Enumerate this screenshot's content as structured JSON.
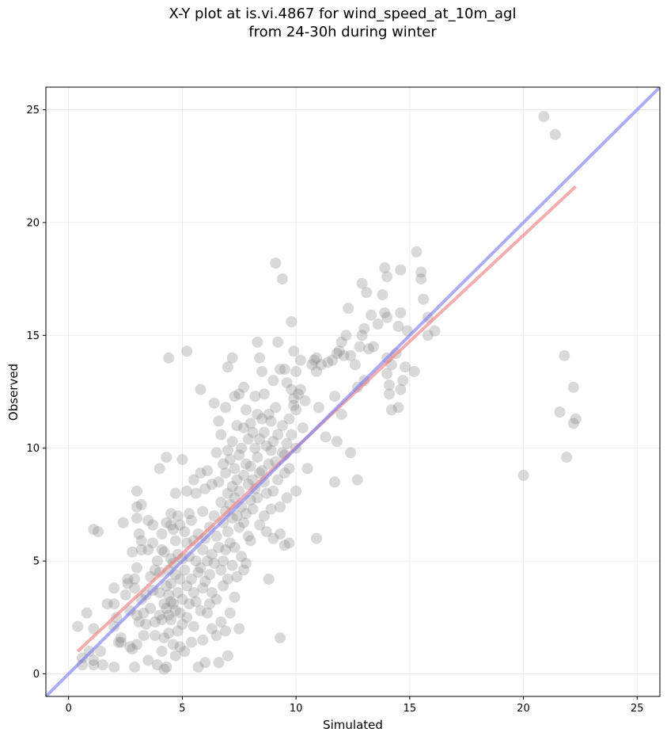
{
  "chart_data": {
    "type": "scatter",
    "title": [
      "X-Y plot at is.vi.4867 for wind_speed_at_10m_agl",
      "from 24-30h during winter"
    ],
    "xlabel": "Simulated",
    "ylabel": "Observed",
    "xlim": [
      -1,
      26
    ],
    "ylim": [
      -1,
      26
    ],
    "xticks": [
      0,
      5,
      10,
      15,
      20,
      25
    ],
    "yticks": [
      0,
      5,
      10,
      15,
      20,
      25
    ],
    "grid": true,
    "colors": {
      "points": "#808080",
      "fit_line": "#f08080",
      "one_to_one_line": "#8080f0"
    },
    "lines": [
      {
        "name": "fit",
        "x": [
          0.4,
          22.3
        ],
        "y": [
          1.0,
          21.6
        ]
      },
      {
        "name": "one-to-one",
        "x": [
          -1,
          26
        ],
        "y": [
          -1,
          26
        ]
      }
    ],
    "points": [
      [
        0.4,
        2.1
      ],
      [
        0.6,
        0.7
      ],
      [
        0.6,
        0.4
      ],
      [
        0.8,
        2.7
      ],
      [
        0.9,
        1.0
      ],
      [
        1.1,
        2.0
      ],
      [
        1.1,
        0.6
      ],
      [
        1.1,
        0.4
      ],
      [
        1.1,
        6.4
      ],
      [
        1.3,
        6.3
      ],
      [
        1.4,
        1.0
      ],
      [
        1.5,
        0.4
      ],
      [
        1.7,
        3.1
      ],
      [
        2.0,
        3.8
      ],
      [
        2.0,
        3.1
      ],
      [
        2.0,
        2.1
      ],
      [
        2.0,
        0.3
      ],
      [
        2.1,
        2.5
      ],
      [
        2.2,
        1.4
      ],
      [
        2.3,
        1.6
      ],
      [
        2.3,
        1.4
      ],
      [
        2.4,
        6.7
      ],
      [
        2.5,
        3.5
      ],
      [
        2.6,
        4.2
      ],
      [
        2.6,
        4.0
      ],
      [
        2.7,
        2.8
      ],
      [
        2.7,
        1.2
      ],
      [
        2.8,
        5.4
      ],
      [
        2.8,
        1.1
      ],
      [
        2.9,
        4.2
      ],
      [
        2.9,
        3.8
      ],
      [
        2.9,
        0.3
      ],
      [
        3.0,
        8.1
      ],
      [
        3.0,
        7.4
      ],
      [
        3.0,
        6.9
      ],
      [
        3.0,
        4.7
      ],
      [
        3.0,
        2.6
      ],
      [
        3.0,
        1.3
      ],
      [
        3.1,
        6.2
      ],
      [
        3.1,
        2.3
      ],
      [
        3.2,
        7.5
      ],
      [
        3.2,
        5.9
      ],
      [
        3.2,
        5.5
      ],
      [
        3.2,
        3.3
      ],
      [
        3.3,
        2.7
      ],
      [
        3.3,
        1.7
      ],
      [
        3.4,
        3.5
      ],
      [
        3.4,
        2.2
      ],
      [
        3.5,
        6.8
      ],
      [
        3.5,
        5.5
      ],
      [
        3.5,
        0.6
      ],
      [
        3.6,
        4.3
      ],
      [
        3.6,
        2.9
      ],
      [
        3.7,
        6.6
      ],
      [
        3.7,
        5.8
      ],
      [
        3.7,
        3.7
      ],
      [
        3.8,
        4.6
      ],
      [
        3.8,
        2.3
      ],
      [
        3.8,
        1.7
      ],
      [
        3.9,
        5.0
      ],
      [
        3.9,
        0.4
      ],
      [
        4.0,
        9.1
      ],
      [
        4.0,
        4.5
      ],
      [
        4.0,
        3.6
      ],
      [
        4.0,
        2.6
      ],
      [
        4.1,
        6.2
      ],
      [
        4.1,
        5.5
      ],
      [
        4.1,
        2.4
      ],
      [
        4.1,
        1.0
      ],
      [
        4.2,
        5.4
      ],
      [
        4.2,
        3.1
      ],
      [
        4.2,
        1.6
      ],
      [
        4.2,
        0.2
      ],
      [
        4.3,
        9.6
      ],
      [
        4.3,
        6.7
      ],
      [
        4.3,
        3.9
      ],
      [
        4.3,
        2.9
      ],
      [
        4.3,
        0.3
      ],
      [
        4.4,
        14.0
      ],
      [
        4.4,
        4.6
      ],
      [
        4.4,
        3.5
      ],
      [
        4.4,
        2.6
      ],
      [
        4.4,
        1.8
      ],
      [
        4.5,
        7.1
      ],
      [
        4.5,
        6.6
      ],
      [
        4.5,
        5.1
      ],
      [
        4.5,
        4.0
      ],
      [
        4.5,
        3.2
      ],
      [
        4.5,
        2.4
      ],
      [
        4.6,
        6.4
      ],
      [
        4.6,
        4.9
      ],
      [
        4.6,
        3.1
      ],
      [
        4.6,
        1.3
      ],
      [
        4.7,
        8.0
      ],
      [
        4.7,
        5.9
      ],
      [
        4.7,
        4.4
      ],
      [
        4.7,
        2.8
      ],
      [
        4.7,
        0.8
      ],
      [
        4.8,
        7.0
      ],
      [
        4.8,
        5.3
      ],
      [
        4.8,
        3.6
      ],
      [
        4.8,
        1.9
      ],
      [
        4.9,
        6.6
      ],
      [
        4.9,
        4.2
      ],
      [
        4.9,
        2.7
      ],
      [
        4.9,
        1.2
      ],
      [
        5.0,
        9.5
      ],
      [
        5.0,
        5.1
      ],
      [
        5.0,
        3.3
      ],
      [
        5.0,
        2.2
      ],
      [
        5.1,
        6.3
      ],
      [
        5.1,
        4.6
      ],
      [
        5.1,
        1.0
      ],
      [
        5.2,
        14.3
      ],
      [
        5.2,
        8.1
      ],
      [
        5.2,
        5.8
      ],
      [
        5.2,
        3.9
      ],
      [
        5.2,
        2.5
      ],
      [
        5.3,
        7.1
      ],
      [
        5.3,
        5.2
      ],
      [
        5.3,
        3.1
      ],
      [
        5.4,
        6.8
      ],
      [
        5.4,
        4.2
      ],
      [
        5.4,
        1.4
      ],
      [
        5.5,
        8.6
      ],
      [
        5.5,
        5.9
      ],
      [
        5.5,
        3.6
      ],
      [
        5.5,
        2.1
      ],
      [
        5.6,
        8.0
      ],
      [
        5.6,
        5.0
      ],
      [
        5.6,
        3.2
      ],
      [
        5.7,
        6.2
      ],
      [
        5.7,
        4.5
      ],
      [
        5.7,
        0.3
      ],
      [
        5.8,
        12.6
      ],
      [
        5.8,
        8.9
      ],
      [
        5.8,
        4.7
      ],
      [
        5.8,
        2.8
      ],
      [
        5.9,
        7.2
      ],
      [
        5.9,
        5.5
      ],
      [
        5.9,
        3.8
      ],
      [
        5.9,
        1.5
      ],
      [
        6.0,
        8.2
      ],
      [
        6.0,
        6.0
      ],
      [
        6.0,
        4.1
      ],
      [
        6.0,
        0.5
      ],
      [
        6.1,
        9.0
      ],
      [
        6.1,
        5.0
      ],
      [
        6.1,
        2.7
      ],
      [
        6.2,
        6.5
      ],
      [
        6.2,
        4.4
      ],
      [
        6.2,
        3.1
      ],
      [
        6.3,
        8.4
      ],
      [
        6.3,
        5.3
      ],
      [
        6.3,
        3.6
      ],
      [
        6.3,
        2.0
      ],
      [
        6.4,
        12.0
      ],
      [
        6.4,
        7.0
      ],
      [
        6.4,
        4.9
      ],
      [
        6.5,
        9.8
      ],
      [
        6.5,
        6.1
      ],
      [
        6.5,
        3.3
      ],
      [
        6.5,
        1.7
      ],
      [
        6.6,
        11.2
      ],
      [
        6.6,
        8.5
      ],
      [
        6.6,
        5.6
      ],
      [
        6.6,
        0.5
      ],
      [
        6.7,
        10.6
      ],
      [
        6.7,
        7.6
      ],
      [
        6.7,
        4.6
      ],
      [
        6.7,
        2.3
      ],
      [
        6.8,
        9.3
      ],
      [
        6.8,
        6.7
      ],
      [
        6.8,
        5.0
      ],
      [
        6.8,
        3.9
      ],
      [
        6.9,
        11.8
      ],
      [
        6.9,
        8.9
      ],
      [
        6.9,
        7.2
      ],
      [
        6.9,
        5.5
      ],
      [
        6.9,
        1.9
      ],
      [
        7.0,
        13.6
      ],
      [
        7.0,
        9.9
      ],
      [
        7.0,
        8.0
      ],
      [
        7.0,
        6.3
      ],
      [
        7.0,
        4.2
      ],
      [
        7.0,
        0.8
      ],
      [
        7.1,
        9.5
      ],
      [
        7.1,
        7.5
      ],
      [
        7.1,
        5.8
      ],
      [
        7.1,
        2.7
      ],
      [
        7.2,
        14.0
      ],
      [
        7.2,
        10.3
      ],
      [
        7.2,
        8.3
      ],
      [
        7.2,
        6.9
      ],
      [
        7.2,
        4.8
      ],
      [
        7.3,
        12.3
      ],
      [
        7.3,
        9.1
      ],
      [
        7.3,
        7.8
      ],
      [
        7.3,
        5.6
      ],
      [
        7.3,
        3.4
      ],
      [
        7.4,
        11.0
      ],
      [
        7.4,
        8.6
      ],
      [
        7.4,
        7.0
      ],
      [
        7.4,
        4.3
      ],
      [
        7.5,
        12.4
      ],
      [
        7.5,
        9.7
      ],
      [
        7.5,
        8.1
      ],
      [
        7.5,
        6.5
      ],
      [
        7.5,
        2.0
      ],
      [
        7.6,
        10.0
      ],
      [
        7.6,
        7.4
      ],
      [
        7.6,
        5.2
      ],
      [
        7.7,
        12.7
      ],
      [
        7.7,
        10.9
      ],
      [
        7.7,
        8.8
      ],
      [
        7.7,
        6.7
      ],
      [
        7.7,
        4.6
      ],
      [
        7.8,
        11.7
      ],
      [
        7.8,
        9.3
      ],
      [
        7.8,
        7.1
      ],
      [
        7.8,
        4.9
      ],
      [
        7.9,
        10.4
      ],
      [
        7.9,
        8.4
      ],
      [
        7.9,
        6.1
      ],
      [
        8.0,
        11.1
      ],
      [
        8.0,
        9.2
      ],
      [
        8.0,
        7.7
      ],
      [
        8.0,
        5.9
      ],
      [
        8.1,
        10.7
      ],
      [
        8.1,
        8.6
      ],
      [
        8.1,
        7.3
      ],
      [
        8.2,
        12.3
      ],
      [
        8.2,
        10.0
      ],
      [
        8.2,
        8.2
      ],
      [
        8.3,
        14.7
      ],
      [
        8.3,
        11.5
      ],
      [
        8.3,
        9.6
      ],
      [
        8.3,
        7.8
      ],
      [
        8.4,
        14.0
      ],
      [
        8.4,
        10.4
      ],
      [
        8.4,
        8.9
      ],
      [
        8.4,
        6.6
      ],
      [
        8.5,
        13.4
      ],
      [
        8.5,
        11.3
      ],
      [
        8.5,
        9.0
      ],
      [
        8.6,
        12.4
      ],
      [
        8.6,
        10.7
      ],
      [
        8.6,
        8.5
      ],
      [
        8.6,
        7.0
      ],
      [
        8.7,
        10.1
      ],
      [
        8.7,
        8.0
      ],
      [
        8.7,
        6.3
      ],
      [
        8.8,
        11.5
      ],
      [
        8.8,
        9.3
      ],
      [
        8.8,
        4.2
      ],
      [
        8.9,
        11.2
      ],
      [
        8.9,
        9.9
      ],
      [
        8.9,
        7.3
      ],
      [
        9.0,
        13.0
      ],
      [
        9.0,
        10.3
      ],
      [
        9.0,
        8.1
      ],
      [
        9.0,
        6.0
      ],
      [
        9.1,
        18.2
      ],
      [
        9.1,
        11.8
      ],
      [
        9.1,
        9.4
      ],
      [
        9.2,
        14.7
      ],
      [
        9.2,
        10.6
      ],
      [
        9.2,
        8.6
      ],
      [
        9.3,
        13.5
      ],
      [
        9.3,
        7.4
      ],
      [
        9.3,
        6.2
      ],
      [
        9.3,
        1.6
      ],
      [
        9.4,
        17.5
      ],
      [
        9.4,
        11.0
      ],
      [
        9.4,
        9.8
      ],
      [
        9.5,
        13.5
      ],
      [
        9.5,
        9.7
      ],
      [
        9.5,
        8.9
      ],
      [
        9.5,
        5.7
      ],
      [
        9.6,
        12.9
      ],
      [
        9.6,
        10.2
      ],
      [
        9.6,
        7.8
      ],
      [
        9.7,
        11.3
      ],
      [
        9.7,
        9.1
      ],
      [
        9.7,
        5.8
      ],
      [
        9.8,
        15.6
      ],
      [
        9.8,
        12.6
      ],
      [
        9.8,
        10.6
      ],
      [
        9.9,
        14.3
      ],
      [
        9.9,
        12.2
      ],
      [
        9.9,
        11.9
      ],
      [
        10.0,
        13.4
      ],
      [
        10.0,
        11.7
      ],
      [
        10.0,
        10.0
      ],
      [
        10.0,
        8.1
      ],
      [
        10.1,
        12.4
      ],
      [
        10.2,
        12.6
      ],
      [
        10.2,
        13.9
      ],
      [
        10.3,
        10.9
      ],
      [
        10.4,
        12.1
      ],
      [
        10.5,
        9.1
      ],
      [
        10.7,
        13.7
      ],
      [
        10.8,
        13.9
      ],
      [
        10.9,
        14.0
      ],
      [
        10.9,
        13.4
      ],
      [
        10.9,
        6.0
      ],
      [
        11.0,
        11.8
      ],
      [
        11.1,
        13.7
      ],
      [
        11.3,
        10.5
      ],
      [
        11.4,
        13.8
      ],
      [
        11.6,
        13.9
      ],
      [
        11.7,
        12.3
      ],
      [
        11.7,
        8.5
      ],
      [
        11.8,
        14.2
      ],
      [
        11.8,
        10.3
      ],
      [
        11.9,
        14.3
      ],
      [
        12.0,
        11.5
      ],
      [
        12.0,
        14.7
      ],
      [
        12.1,
        14.1
      ],
      [
        12.2,
        15.0
      ],
      [
        12.3,
        16.2
      ],
      [
        12.4,
        14.1
      ],
      [
        12.4,
        9.8
      ],
      [
        12.6,
        13.7
      ],
      [
        12.7,
        12.7
      ],
      [
        12.7,
        8.6
      ],
      [
        12.8,
        14.5
      ],
      [
        12.9,
        17.3
      ],
      [
        12.9,
        15.0
      ],
      [
        13.0,
        15.3
      ],
      [
        13.0,
        13.0
      ],
      [
        13.1,
        16.9
      ],
      [
        13.2,
        14.4
      ],
      [
        13.3,
        15.9
      ],
      [
        13.4,
        14.5
      ],
      [
        13.6,
        15.5
      ],
      [
        13.8,
        16.8
      ],
      [
        13.9,
        18.0
      ],
      [
        13.9,
        16.0
      ],
      [
        14.0,
        17.6
      ],
      [
        14.0,
        15.8
      ],
      [
        14.0,
        14.0
      ],
      [
        14.0,
        13.3
      ],
      [
        14.1,
        12.4
      ],
      [
        14.1,
        12.8
      ],
      [
        14.2,
        13.7
      ],
      [
        14.2,
        11.7
      ],
      [
        14.4,
        14.2
      ],
      [
        14.5,
        15.4
      ],
      [
        14.5,
        11.8
      ],
      [
        14.6,
        17.9
      ],
      [
        14.6,
        16.0
      ],
      [
        14.6,
        12.6
      ],
      [
        14.7,
        13.0
      ],
      [
        14.8,
        13.6
      ],
      [
        14.9,
        15.2
      ],
      [
        15.2,
        13.4
      ],
      [
        15.3,
        18.7
      ],
      [
        15.5,
        17.5
      ],
      [
        15.5,
        17.8
      ],
      [
        15.6,
        16.6
      ],
      [
        15.8,
        15.8
      ],
      [
        15.8,
        15.0
      ],
      [
        16.1,
        15.2
      ],
      [
        20.0,
        8.8
      ],
      [
        20.9,
        24.7
      ],
      [
        21.4,
        23.9
      ],
      [
        21.6,
        11.6
      ],
      [
        21.8,
        14.1
      ],
      [
        21.9,
        9.6
      ],
      [
        22.2,
        12.7
      ],
      [
        22.2,
        11.1
      ],
      [
        22.3,
        11.3
      ]
    ]
  }
}
